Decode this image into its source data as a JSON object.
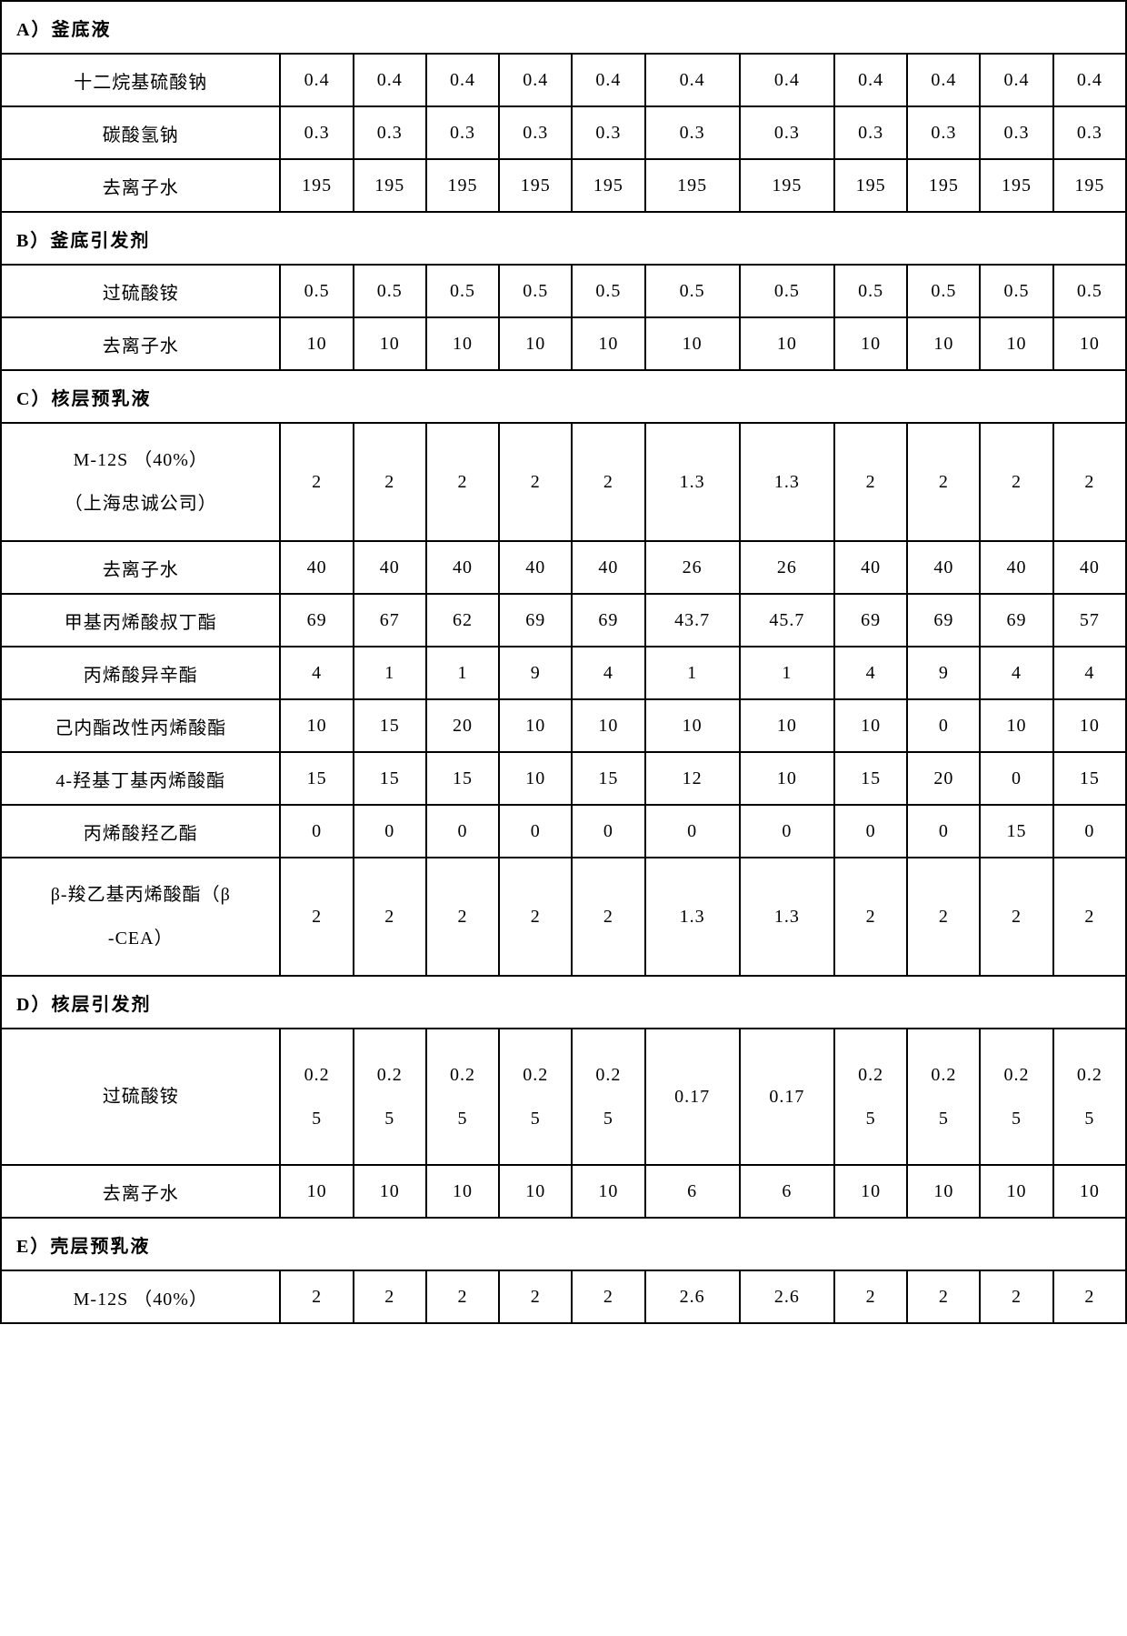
{
  "col_widths": {
    "label": 230,
    "narrow": 60,
    "wide": 78
  },
  "sections": {
    "A": {
      "header": "A）釜底液",
      "rows": [
        {
          "label": "十二烷基硫酸钠",
          "vals": [
            "0.4",
            "0.4",
            "0.4",
            "0.4",
            "0.4",
            "0.4",
            "0.4",
            "0.4",
            "0.4",
            "0.4",
            "0.4"
          ]
        },
        {
          "label": "碳酸氢钠",
          "vals": [
            "0.3",
            "0.3",
            "0.3",
            "0.3",
            "0.3",
            "0.3",
            "0.3",
            "0.3",
            "0.3",
            "0.3",
            "0.3"
          ]
        },
        {
          "label": "去离子水",
          "vals": [
            "195",
            "195",
            "195",
            "195",
            "195",
            "195",
            "195",
            "195",
            "195",
            "195",
            "195"
          ]
        }
      ]
    },
    "B": {
      "header": "B）釜底引发剂",
      "rows": [
        {
          "label": "过硫酸铵",
          "vals": [
            "0.5",
            "0.5",
            "0.5",
            "0.5",
            "0.5",
            "0.5",
            "0.5",
            "0.5",
            "0.5",
            "0.5",
            "0.5"
          ]
        },
        {
          "label": "去离子水",
          "vals": [
            "10",
            "10",
            "10",
            "10",
            "10",
            "10",
            "10",
            "10",
            "10",
            "10",
            "10"
          ]
        }
      ]
    },
    "C": {
      "header": "C）核层预乳液",
      "rows": [
        {
          "label": "M-12S （40%）\n（上海忠诚公司）",
          "vals": [
            "2",
            "2",
            "2",
            "2",
            "2",
            "1.3",
            "1.3",
            "2",
            "2",
            "2",
            "2"
          ],
          "tall": true
        },
        {
          "label": "去离子水",
          "vals": [
            "40",
            "40",
            "40",
            "40",
            "40",
            "26",
            "26",
            "40",
            "40",
            "40",
            "40"
          ]
        },
        {
          "label": "甲基丙烯酸叔丁酯",
          "vals": [
            "69",
            "67",
            "62",
            "69",
            "69",
            "43.7",
            "45.7",
            "69",
            "69",
            "69",
            "57"
          ]
        },
        {
          "label": "丙烯酸异辛酯",
          "vals": [
            "4",
            "1",
            "1",
            "9",
            "4",
            "1",
            "1",
            "4",
            "9",
            "4",
            "4"
          ]
        },
        {
          "label": "己内酯改性丙烯酸酯",
          "vals": [
            "10",
            "15",
            "20",
            "10",
            "10",
            "10",
            "10",
            "10",
            "0",
            "10",
            "10"
          ]
        },
        {
          "label": "4-羟基丁基丙烯酸酯",
          "vals": [
            "15",
            "15",
            "15",
            "10",
            "15",
            "12",
            "10",
            "15",
            "20",
            "0",
            "15"
          ]
        },
        {
          "label": "丙烯酸羟乙酯",
          "vals": [
            "0",
            "0",
            "0",
            "0",
            "0",
            "0",
            "0",
            "0",
            "0",
            "15",
            "0"
          ]
        },
        {
          "label": "β-羧乙基丙烯酸酯（β\n-CEA）",
          "vals": [
            "2",
            "2",
            "2",
            "2",
            "2",
            "1.3",
            "1.3",
            "2",
            "2",
            "2",
            "2"
          ],
          "tall": true
        }
      ]
    },
    "D": {
      "header": "D）核层引发剂",
      "rows": [
        {
          "label": "过硫酸铵",
          "vals": [
            "0.25",
            "0.25",
            "0.25",
            "0.25",
            "0.25",
            "0.17",
            "0.17",
            "0.25",
            "0.25",
            "0.25",
            "0.25"
          ],
          "tall2": true
        },
        {
          "label": "去离子水",
          "vals": [
            "10",
            "10",
            "10",
            "10",
            "10",
            "6",
            "6",
            "10",
            "10",
            "10",
            "10"
          ]
        }
      ]
    },
    "E": {
      "header": "E）壳层预乳液",
      "rows": [
        {
          "label": "M-12S （40%）",
          "vals": [
            "2",
            "2",
            "2",
            "2",
            "2",
            "2.6",
            "2.6",
            "2",
            "2",
            "2",
            "2"
          ]
        }
      ]
    }
  },
  "section_order": [
    "A",
    "B",
    "C",
    "D",
    "E"
  ]
}
